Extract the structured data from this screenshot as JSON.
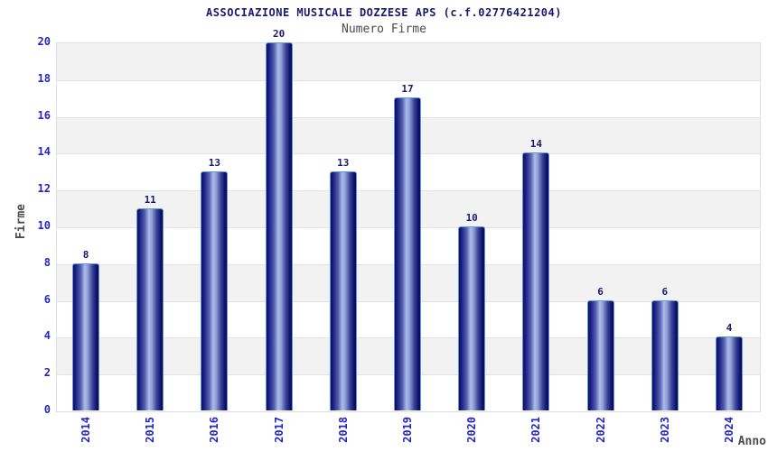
{
  "chart_data": {
    "type": "bar",
    "title": "ASSOCIAZIONE MUSICALE DOZZESE APS (c.f.02776421204)",
    "subtitle": "Numero Firme",
    "xlabel": "Anno",
    "ylabel": "Firme",
    "categories": [
      "2014",
      "2015",
      "2016",
      "2017",
      "2018",
      "2019",
      "2020",
      "2021",
      "2022",
      "2023",
      "2024"
    ],
    "values": [
      8,
      11,
      13,
      20,
      13,
      17,
      10,
      14,
      6,
      6,
      4
    ],
    "ylim": [
      0,
      20
    ],
    "ytick_step": 2,
    "yticks": [
      0,
      2,
      4,
      6,
      8,
      10,
      12,
      14,
      16,
      18,
      20
    ],
    "legend": "none",
    "grid": "horizontal-bands",
    "colors": {
      "background": "#ffffff",
      "band_gray": "#f2f2f2",
      "band_white": "#ffffff",
      "gridline": "#e2e2e2",
      "bar_dark": "#0e0e66",
      "bar_mid": "#3a4499",
      "bar_light": "#aebce8",
      "bar_border": "#5b9ada",
      "value_label": "#191970",
      "tick_label": "#2424cc",
      "title": "#191970",
      "subtitle": "#4a4a4a",
      "axis_title": "#4d4d4d"
    }
  }
}
